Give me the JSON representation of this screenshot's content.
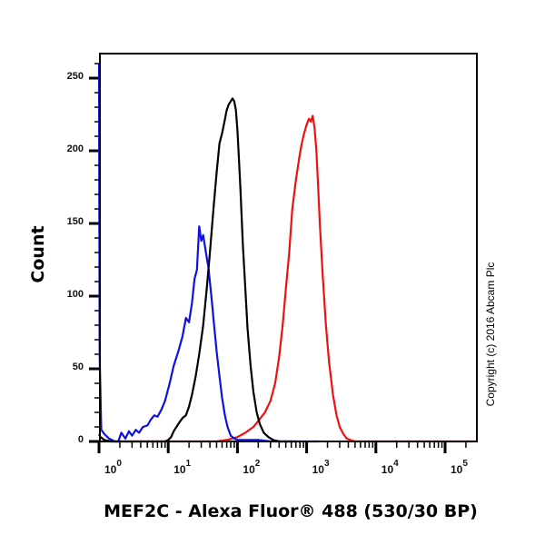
{
  "chart_data": {
    "type": "line",
    "title": "",
    "xlabel": "MEF2C - Alexa Fluor® 488 (530/30 BP)",
    "ylabel": "Count",
    "xscale": "log",
    "xlim": [
      1,
      250000
    ],
    "ylim": [
      0,
      262
    ],
    "x_ticks": [
      1,
      10,
      100,
      1000,
      10000,
      100000
    ],
    "x_tick_labels": [
      {
        "base": "10",
        "exp": "0"
      },
      {
        "base": "10",
        "exp": "1"
      },
      {
        "base": "10",
        "exp": "2"
      },
      {
        "base": "10",
        "exp": "3"
      },
      {
        "base": "10",
        "exp": "4"
      },
      {
        "base": "10",
        "exp": "5"
      }
    ],
    "y_ticks": [
      0,
      50,
      100,
      150,
      200,
      250
    ],
    "grid": false,
    "legend": null,
    "annotation": "Copyright (c) 2016 Abcam Plc",
    "series": [
      {
        "name": "blue",
        "color": "#1010e0",
        "x": [
          1.0,
          1.02,
          1.08,
          1.2,
          1.4,
          1.7,
          1.9,
          2.1,
          2.4,
          2.7,
          3.0,
          3.4,
          3.8,
          4.3,
          5.0,
          5.6,
          6.3,
          7.0,
          8.0,
          9.0,
          10.5,
          12,
          14,
          16,
          18,
          20,
          22,
          24,
          26,
          28,
          30,
          32,
          35,
          38,
          42,
          46,
          50,
          55,
          60,
          66,
          72,
          80,
          90,
          100,
          115,
          135,
          160,
          200,
          300,
          500,
          800,
          1500
        ],
        "values": [
          260,
          60,
          8,
          5,
          2,
          0,
          0,
          6,
          2,
          7,
          4,
          8,
          6,
          10,
          11,
          15,
          18,
          17,
          22,
          28,
          40,
          52,
          62,
          72,
          85,
          82,
          95,
          112,
          118,
          148,
          138,
          142,
          130,
          120,
          100,
          80,
          62,
          45,
          30,
          18,
          10,
          4,
          2,
          1,
          1,
          1,
          1,
          1,
          0,
          0,
          0,
          0
        ]
      },
      {
        "name": "black",
        "color": "#000000",
        "x": [
          1.0,
          1.05,
          1.2,
          1.5,
          2,
          3,
          4,
          5,
          6,
          7,
          8,
          9,
          10,
          11,
          12,
          14,
          16,
          18,
          20,
          22,
          25,
          28,
          32,
          36,
          40,
          45,
          50,
          55,
          60,
          65,
          70,
          75,
          80,
          85,
          90,
          95,
          100,
          105,
          110,
          115,
          120,
          130,
          140,
          155,
          170,
          190,
          210,
          240,
          280,
          330,
          400,
          500,
          700
        ],
        "values": [
          5,
          3,
          1,
          0,
          0,
          0,
          0,
          0,
          0,
          0,
          0,
          0,
          1,
          3,
          7,
          12,
          16,
          18,
          24,
          32,
          45,
          60,
          80,
          105,
          130,
          160,
          185,
          205,
          212,
          220,
          228,
          232,
          234,
          236,
          234,
          228,
          214,
          195,
          175,
          155,
          135,
          105,
          78,
          52,
          34,
          20,
          12,
          6,
          3,
          1,
          0,
          0,
          0
        ]
      },
      {
        "name": "red",
        "color": "#ee1111",
        "x": [
          1,
          10,
          30,
          50,
          70,
          100,
          130,
          170,
          200,
          250,
          300,
          350,
          400,
          450,
          500,
          560,
          620,
          700,
          780,
          850,
          920,
          1000,
          1080,
          1150,
          1220,
          1300,
          1380,
          1450,
          1550,
          1700,
          1900,
          2100,
          2400,
          2700,
          3000,
          3400,
          3800,
          4300,
          5000,
          7000,
          20000,
          100000,
          250000
        ],
        "values": [
          0,
          0,
          0,
          0,
          1,
          3,
          6,
          10,
          14,
          20,
          28,
          40,
          58,
          80,
          105,
          130,
          160,
          180,
          195,
          205,
          212,
          218,
          222,
          220,
          224,
          216,
          200,
          180,
          150,
          115,
          80,
          55,
          32,
          18,
          10,
          5,
          2,
          1,
          0,
          0,
          0,
          0,
          0
        ]
      }
    ]
  }
}
